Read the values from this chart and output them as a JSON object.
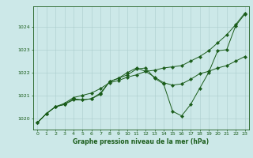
{
  "bg_color": "#cce8e8",
  "grid_color": "#aacccc",
  "line_color": "#1a5c1a",
  "title": "Graphe pression niveau de la mer (hPa)",
  "xlim": [
    -0.5,
    23.5
  ],
  "ylim": [
    1019.5,
    1024.9
  ],
  "yticks": [
    1020,
    1021,
    1022,
    1023,
    1024
  ],
  "xticks": [
    0,
    1,
    2,
    3,
    4,
    5,
    6,
    7,
    8,
    9,
    10,
    11,
    12,
    13,
    14,
    15,
    16,
    17,
    18,
    19,
    20,
    21,
    22,
    23
  ],
  "line1_x": [
    0,
    1,
    2,
    3,
    4,
    5,
    6,
    7,
    8,
    9,
    10,
    11,
    12,
    13,
    14,
    15,
    16,
    17,
    18,
    19,
    20,
    21,
    22,
    23
  ],
  "line1_y": [
    1019.8,
    1020.2,
    1020.5,
    1020.6,
    1020.8,
    1020.8,
    1020.85,
    1021.05,
    1021.6,
    1021.75,
    1021.9,
    1022.15,
    1022.2,
    1021.75,
    1021.5,
    1020.3,
    1020.1,
    1020.6,
    1021.3,
    1022.0,
    1022.95,
    1023.0,
    1024.05,
    1024.55
  ],
  "line2_x": [
    0,
    1,
    2,
    3,
    4,
    5,
    6,
    7,
    8,
    9,
    10,
    11,
    12,
    13,
    14,
    15,
    16,
    17,
    18,
    19,
    20,
    21,
    22,
    23
  ],
  "line2_y": [
    1019.8,
    1020.2,
    1020.5,
    1020.65,
    1020.9,
    1021.0,
    1021.1,
    1021.3,
    1021.55,
    1021.65,
    1021.8,
    1021.9,
    1022.05,
    1022.1,
    1022.2,
    1022.25,
    1022.3,
    1022.5,
    1022.7,
    1022.95,
    1023.3,
    1023.65,
    1024.1,
    1024.6
  ],
  "line3_x": [
    0,
    1,
    2,
    3,
    4,
    5,
    6,
    7,
    8,
    9,
    10,
    11,
    12,
    13,
    14,
    15,
    16,
    17,
    18,
    19,
    20,
    21,
    22,
    23
  ],
  "line3_y": [
    1019.8,
    1020.2,
    1020.5,
    1020.6,
    1020.85,
    1020.8,
    1020.85,
    1021.1,
    1021.6,
    1021.75,
    1022.0,
    1022.2,
    1022.05,
    1021.8,
    1021.55,
    1021.45,
    1021.5,
    1021.7,
    1021.95,
    1022.05,
    1022.2,
    1022.3,
    1022.5,
    1022.7
  ]
}
